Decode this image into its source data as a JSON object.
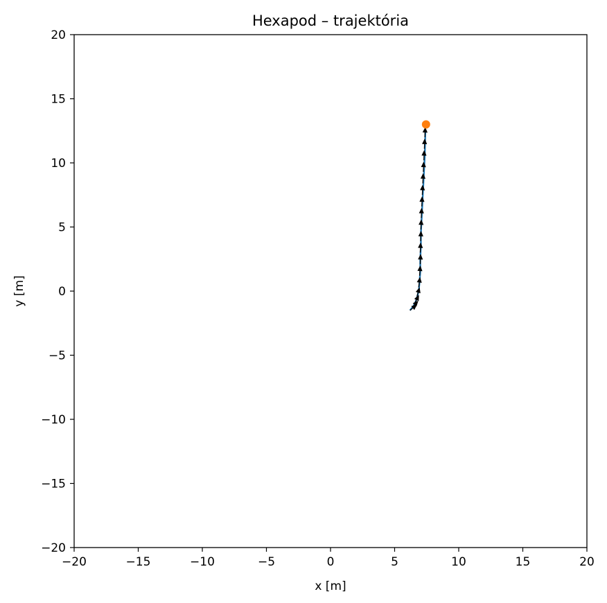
{
  "chart_data": {
    "type": "line",
    "title": "Hexapod – trajektória",
    "xlabel": "x [m]",
    "ylabel": "y [m]",
    "xlim": [
      -20,
      20
    ],
    "ylim": [
      -20,
      20
    ],
    "xticks": [
      -20,
      -15,
      -10,
      -5,
      0,
      5,
      10,
      15,
      20
    ],
    "yticks": [
      -20,
      -15,
      -10,
      -5,
      0,
      5,
      10,
      15,
      20
    ],
    "xtick_labels": [
      "−20",
      "−15",
      "−10",
      "−5",
      "0",
      "5",
      "10",
      "15",
      "20"
    ],
    "ytick_labels": [
      "−20",
      "−15",
      "−10",
      "−5",
      "0",
      "5",
      "10",
      "15",
      "20"
    ],
    "grid": false,
    "series": [
      {
        "kind": "trajectory",
        "color": "#1f77b4",
        "x": [
          6.2,
          6.45,
          6.65,
          6.8,
          6.9,
          6.95,
          7.0,
          7.0,
          7.05,
          7.05,
          7.1,
          7.15,
          7.2,
          7.25,
          7.3,
          7.35,
          7.4
        ],
        "y": [
          -1.5,
          -1.2,
          -0.8,
          -0.3,
          0.2,
          0.8,
          1.5,
          2.5,
          3.5,
          4.5,
          5.5,
          6.5,
          7.5,
          8.5,
          9.5,
          10.5,
          12.5
        ]
      }
    ],
    "heading_arrows": {
      "color": "#000000",
      "points": [
        {
          "x": 6.2,
          "y": -1.5,
          "dx": 0.55,
          "dy": 0.45
        },
        {
          "x": 6.4,
          "y": -1.25,
          "dx": 0.45,
          "dy": 0.5
        },
        {
          "x": 6.6,
          "y": -0.9,
          "dx": 0.3,
          "dy": 0.6
        },
        {
          "x": 6.75,
          "y": -0.4,
          "dx": 0.2,
          "dy": 0.7
        },
        {
          "x": 6.88,
          "y": 0.3,
          "dx": 0.1,
          "dy": 0.8
        },
        {
          "x": 6.95,
          "y": 1.2,
          "dx": 0.05,
          "dy": 0.8
        },
        {
          "x": 7.0,
          "y": 2.1,
          "dx": 0.03,
          "dy": 0.8
        },
        {
          "x": 7.0,
          "y": 3.0,
          "dx": 0.03,
          "dy": 0.8
        },
        {
          "x": 7.03,
          "y": 3.9,
          "dx": 0.03,
          "dy": 0.8
        },
        {
          "x": 7.05,
          "y": 4.8,
          "dx": 0.03,
          "dy": 0.8
        },
        {
          "x": 7.08,
          "y": 5.7,
          "dx": 0.03,
          "dy": 0.8
        },
        {
          "x": 7.12,
          "y": 6.6,
          "dx": 0.03,
          "dy": 0.8
        },
        {
          "x": 7.16,
          "y": 7.5,
          "dx": 0.03,
          "dy": 0.8
        },
        {
          "x": 7.2,
          "y": 8.4,
          "dx": 0.03,
          "dy": 0.8
        },
        {
          "x": 7.24,
          "y": 9.3,
          "dx": 0.03,
          "dy": 0.8
        },
        {
          "x": 7.28,
          "y": 10.2,
          "dx": 0.03,
          "dy": 0.8
        },
        {
          "x": 7.32,
          "y": 11.1,
          "dx": 0.03,
          "dy": 0.8
        },
        {
          "x": 7.36,
          "y": 12.0,
          "dx": 0.03,
          "dy": 0.8
        }
      ]
    },
    "end_marker": {
      "x": 7.45,
      "y": 13.0,
      "color": "#ff7f0e"
    }
  }
}
